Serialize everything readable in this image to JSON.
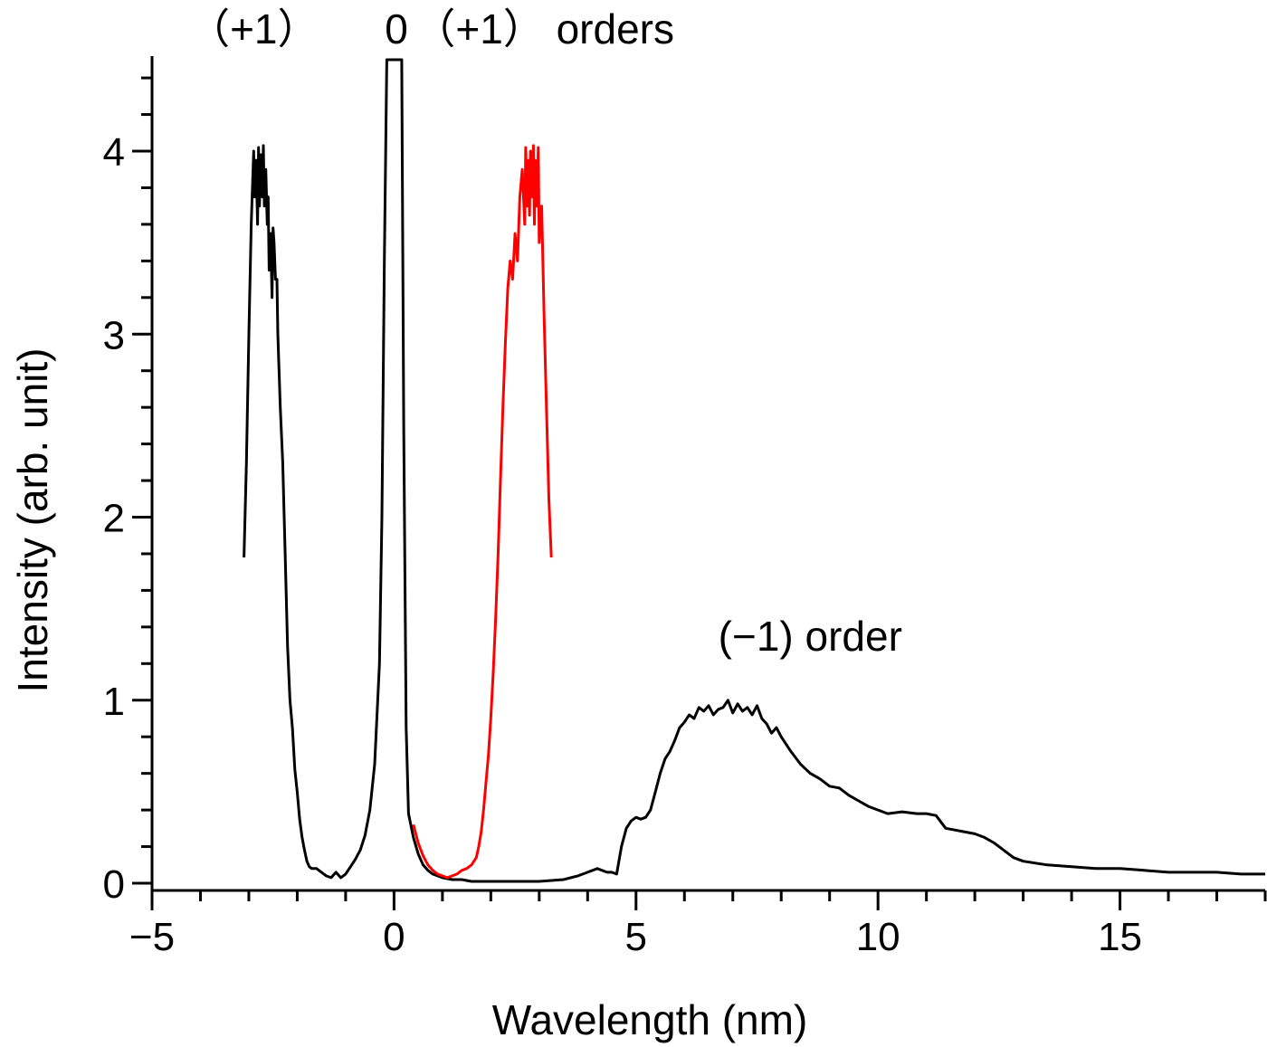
{
  "chart_data": {
    "type": "line",
    "xlabel": "Wavelength (nm)",
    "ylabel": "Intensity (arb. unit)",
    "xlim": [
      -5,
      18
    ],
    "ylim": [
      0,
      4.5
    ],
    "x_ticks": [
      -5,
      0,
      5,
      10,
      15
    ],
    "x_tick_labels": [
      "−5",
      "0",
      "5",
      "10",
      "15"
    ],
    "y_ticks": [
      0,
      1,
      2,
      3,
      4
    ],
    "y_tick_labels": [
      "0",
      "1",
      "2",
      "3",
      "4"
    ],
    "grid": false,
    "annotations": [
      {
        "text": "（+1）",
        "x": -2.9,
        "y": 4.72
      },
      {
        "text": "0",
        "x": 0.05,
        "y": 4.72
      },
      {
        "text": "（+1） orders",
        "x": 3.1,
        "y": 4.72
      },
      {
        "text": "(−1) order",
        "x": 8.6,
        "y": 1.27
      }
    ],
    "series": [
      {
        "color": "#000000",
        "x": [
          -3.1,
          -3.05,
          -3.0,
          -2.95,
          -2.9,
          -2.88,
          -2.85,
          -2.82,
          -2.8,
          -2.78,
          -2.75,
          -2.72,
          -2.7,
          -2.68,
          -2.65,
          -2.62,
          -2.6,
          -2.58,
          -2.55,
          -2.52,
          -2.5,
          -2.48,
          -2.45,
          -2.42,
          -2.4,
          -2.35,
          -2.3,
          -2.25,
          -2.2,
          -2.15,
          -2.1,
          -2.05,
          -2.0,
          -1.95,
          -1.9,
          -1.85,
          -1.8,
          -1.75,
          -1.7,
          -1.6,
          -1.5,
          -1.4,
          -1.3,
          -1.2,
          -1.1,
          -1.0,
          -0.9,
          -0.8,
          -0.7,
          -0.6,
          -0.5,
          -0.4,
          -0.3,
          -0.25,
          -0.2,
          -0.15,
          -0.12,
          -0.1,
          -0.08,
          -0.06,
          -0.04,
          -0.02,
          0.0,
          0.02,
          0.04,
          0.06,
          0.08,
          0.1,
          0.12,
          0.14,
          0.16,
          0.2,
          0.25,
          0.3,
          0.4,
          0.5,
          0.6,
          0.7,
          0.8,
          0.9,
          1.0,
          1.2,
          1.4,
          1.6,
          1.8,
          2.0,
          2.5,
          3.0,
          3.5,
          3.8,
          4.0,
          4.2,
          4.4,
          4.5,
          4.6,
          4.7,
          4.8,
          4.9,
          5.0,
          5.1,
          5.2,
          5.3,
          5.4,
          5.5,
          5.6,
          5.7,
          5.8,
          5.9,
          6.0,
          6.1,
          6.2,
          6.3,
          6.4,
          6.5,
          6.6,
          6.7,
          6.8,
          6.9,
          7.0,
          7.1,
          7.2,
          7.3,
          7.4,
          7.5,
          7.6,
          7.7,
          7.8,
          7.9,
          8.0,
          8.2,
          8.4,
          8.6,
          8.8,
          9.0,
          9.2,
          9.4,
          9.6,
          9.8,
          10.0,
          10.2,
          10.5,
          10.8,
          11.0,
          11.2,
          11.4,
          11.6,
          11.8,
          12.0,
          12.2,
          12.4,
          12.6,
          12.8,
          13.0,
          13.5,
          14.0,
          14.5,
          15.0,
          15.5,
          16.0,
          16.5,
          17.0,
          17.5,
          18.0
        ],
        "y": [
          1.78,
          2.3,
          3.0,
          3.6,
          4.0,
          3.75,
          3.95,
          3.6,
          4.02,
          3.7,
          3.98,
          3.75,
          4.03,
          3.7,
          3.9,
          3.6,
          3.75,
          3.35,
          3.55,
          3.2,
          3.58,
          3.5,
          3.3,
          3.3,
          3.0,
          2.6,
          2.3,
          1.8,
          1.3,
          1.0,
          0.85,
          0.62,
          0.5,
          0.35,
          0.25,
          0.18,
          0.12,
          0.09,
          0.08,
          0.08,
          0.06,
          0.04,
          0.03,
          0.06,
          0.03,
          0.05,
          0.09,
          0.13,
          0.18,
          0.26,
          0.4,
          0.65,
          1.2,
          2.0,
          3.4,
          4.5,
          4.5,
          4.5,
          4.5,
          4.5,
          4.5,
          4.5,
          4.5,
          4.5,
          4.5,
          4.5,
          4.5,
          4.5,
          4.5,
          4.5,
          4.5,
          2.5,
          0.85,
          0.38,
          0.25,
          0.16,
          0.1,
          0.07,
          0.05,
          0.04,
          0.03,
          0.02,
          0.02,
          0.01,
          0.01,
          0.01,
          0.01,
          0.01,
          0.02,
          0.04,
          0.06,
          0.08,
          0.06,
          0.06,
          0.05,
          0.2,
          0.3,
          0.34,
          0.36,
          0.35,
          0.36,
          0.4,
          0.5,
          0.6,
          0.68,
          0.72,
          0.78,
          0.85,
          0.88,
          0.92,
          0.9,
          0.96,
          0.94,
          0.97,
          0.92,
          0.95,
          0.96,
          1.0,
          0.93,
          0.98,
          0.94,
          0.96,
          0.92,
          0.97,
          0.9,
          0.87,
          0.82,
          0.85,
          0.8,
          0.72,
          0.65,
          0.6,
          0.57,
          0.53,
          0.52,
          0.48,
          0.45,
          0.42,
          0.4,
          0.38,
          0.39,
          0.38,
          0.38,
          0.37,
          0.3,
          0.29,
          0.28,
          0.27,
          0.25,
          0.22,
          0.18,
          0.14,
          0.12,
          0.1,
          0.09,
          0.08,
          0.08,
          0.07,
          0.06,
          0.06,
          0.06,
          0.05,
          0.05
        ]
      },
      {
        "color": "#ff0000",
        "x": [
          0.4,
          0.5,
          0.6,
          0.7,
          0.8,
          0.9,
          1.0,
          1.1,
          1.2,
          1.3,
          1.4,
          1.5,
          1.6,
          1.7,
          1.75,
          1.8,
          1.85,
          1.9,
          1.95,
          2.0,
          2.05,
          2.1,
          2.15,
          2.2,
          2.25,
          2.3,
          2.35,
          2.4,
          2.45,
          2.5,
          2.55,
          2.6,
          2.65,
          2.7,
          2.72,
          2.75,
          2.78,
          2.8,
          2.82,
          2.85,
          2.88,
          2.9,
          2.92,
          2.95,
          2.98,
          3.0,
          3.05,
          3.1,
          3.15,
          3.2,
          3.25
        ],
        "y": [
          0.32,
          0.22,
          0.15,
          0.1,
          0.07,
          0.05,
          0.04,
          0.03,
          0.04,
          0.05,
          0.07,
          0.08,
          0.1,
          0.14,
          0.2,
          0.28,
          0.4,
          0.55,
          0.7,
          0.9,
          1.15,
          1.45,
          1.8,
          2.2,
          2.6,
          2.95,
          3.25,
          3.4,
          3.3,
          3.55,
          3.4,
          3.75,
          3.9,
          3.6,
          4.02,
          3.7,
          3.95,
          3.65,
          4.0,
          3.75,
          4.03,
          3.6,
          3.95,
          3.7,
          4.02,
          3.5,
          3.7,
          3.1,
          2.6,
          2.1,
          1.78
        ]
      }
    ]
  }
}
